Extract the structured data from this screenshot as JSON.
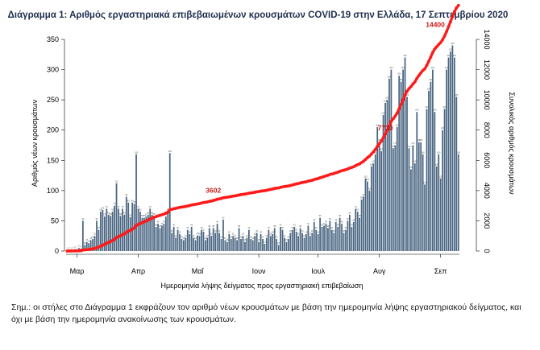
{
  "chart_data": {
    "type": "bar",
    "title": "Διάγραμμα 1: Αριθμός εργαστηριακά επιβεβαιωμένων κρουσμάτων COVID-19 στην Ελλάδα, 17 Σεπτεμβρίου 2020",
    "xlabel": "Ημερομηνία λήψης δείγματος προς εργαστηριακή επιβεβαίωση",
    "ylabel": "Αριθμός νέων κρουσμάτων",
    "y2label": "Συνολικός αριθμός κρουσμάτων",
    "ylim": [
      0,
      350
    ],
    "y2lim": [
      0,
      14000
    ],
    "yticks": [
      0,
      50,
      100,
      150,
      200,
      250,
      300,
      350
    ],
    "y2ticks": [
      0,
      2000,
      4000,
      6000,
      8000,
      10000,
      12000,
      14000
    ],
    "x_start_day": 0,
    "x_month_ticks": [
      {
        "label": "Μαρ",
        "day": 5
      },
      {
        "label": "Απρ",
        "day": 36
      },
      {
        "label": "Μαΐ",
        "day": 66
      },
      {
        "label": "Ιουν",
        "day": 97
      },
      {
        "label": "Ιουλ",
        "day": 127
      },
      {
        "label": "Αυγ",
        "day": 158
      },
      {
        "label": "Σεπ",
        "day": 189
      }
    ],
    "series": [
      {
        "name": "Νέα κρούσματα",
        "kind": "bar",
        "color": "#4a6682",
        "values": [
          1,
          2,
          1,
          2,
          3,
          1,
          5,
          4,
          50,
          10,
          15,
          13,
          18,
          20,
          25,
          50,
          35,
          65,
          68,
          57,
          70,
          60,
          58,
          65,
          75,
          112,
          70,
          58,
          70,
          60,
          90,
          80,
          56,
          80,
          78,
          160,
          70,
          65,
          55,
          55,
          57,
          60,
          70,
          60,
          58,
          40,
          45,
          38,
          42,
          45,
          57,
          65,
          162,
          30,
          40,
          22,
          35,
          28,
          20,
          18,
          22,
          35,
          28,
          40,
          22,
          18,
          26,
          25,
          35,
          32,
          18,
          22,
          38,
          25,
          38,
          30,
          45,
          30,
          20,
          52,
          18,
          15,
          28,
          20,
          25,
          22,
          18,
          38,
          20,
          25,
          15,
          22,
          35,
          20,
          18,
          25,
          30,
          15,
          28,
          20,
          12,
          22,
          35,
          25,
          28,
          38,
          20,
          10,
          40,
          35,
          22,
          15,
          20,
          30,
          35,
          40,
          32,
          25,
          38,
          30,
          22,
          28,
          42,
          25,
          30,
          48,
          35,
          28,
          55,
          40,
          42,
          45,
          38,
          50,
          35,
          30,
          48,
          40,
          55,
          45,
          30,
          35,
          50,
          60,
          40,
          48,
          70,
          65,
          55,
          85,
          90,
          120,
          115,
          100,
          140,
          145,
          160,
          205,
          180,
          165,
          225,
          245,
          250,
          285,
          300,
          170,
          175,
          205,
          290,
          280,
          300,
          320,
          255,
          170,
          135,
          175,
          145,
          230,
          180,
          180,
          160,
          110,
          235,
          265,
          280,
          300,
          230,
          140,
          160,
          120,
          200,
          235,
          300,
          320,
          330,
          340,
          320,
          255,
          160
        ],
        "labels_shown": "bar data labels (very small)"
      },
      {
        "name": "Συνολικός αριθμός κρουσμάτων",
        "kind": "line",
        "axis": "right",
        "color": "#ff1a1a",
        "annotations": [
          {
            "label": "3602",
            "value": 3602
          },
          {
            "label": "7730",
            "value": 7730
          },
          {
            "label": "14400",
            "value": 14400
          }
        ]
      }
    ]
  },
  "note": "Σημ.: οι στήλες στο Διάγραμμα 1 εκφράζουν τον αριθμό νέων κρουσμάτων με βάση την ημερομηνία λήψης εργαστηριακού δείγματος, και όχι με βάση την ημερομηνία ανακοίνωσης των κρουσμάτων.",
  "colors": {
    "bar": "#4a6682",
    "line": "#ff1a1a",
    "annotation": "#cc1a1a",
    "title": "#1f2f4f"
  }
}
